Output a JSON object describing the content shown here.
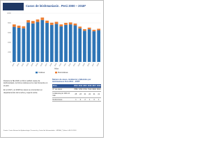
{
  "header": {
    "title": "Casos de leishmaniasis . Perú 2000 – 2018*"
  },
  "chart_data": {
    "type": "bar",
    "stacked": true,
    "categories": [
      "2000",
      "2001",
      "2002",
      "2003",
      "2004",
      "2005",
      "2006",
      "2007",
      "2008",
      "2009",
      "2010",
      "2011",
      "2012",
      "2013",
      "2014",
      "2015",
      "2016",
      "2017",
      "2018"
    ],
    "series": [
      {
        "name": "Cutánea",
        "color": "#2e75b6",
        "values": [
          7200,
          7000,
          6900,
          8100,
          7900,
          8200,
          8600,
          8000,
          7600,
          7800,
          7300,
          7600,
          7700,
          7500,
          6900,
          6400,
          6700,
          6300,
          6500
        ]
      },
      {
        "name": "Mucocutánea",
        "color": "#ed7d31",
        "values": [
          500,
          450,
          420,
          480,
          500,
          520,
          510,
          480,
          450,
          430,
          400,
          420,
          410,
          380,
          350,
          330,
          340,
          300,
          310
        ]
      }
    ],
    "ylim": [
      0,
      10000
    ],
    "yticks": [
      0,
      2000,
      4000,
      6000,
      8000,
      10000
    ],
    "xlabel": "Años",
    "grid": true
  },
  "text": {
    "paragraphs": [
      "Durante la SE 2018, el Perú notificó casos de leishmaniasis, la forma cutánea es la más frecuente en el país.",
      "En el 2017 y el 2018 los casos se concentran en departamentos de la selva y ceja de selva."
    ]
  },
  "table": {
    "title": "Número de casos, incidencia y fallecidos por leishmaniasis Perú 2013 – 2018*",
    "header": [
      "Años",
      "2013",
      "2014",
      "2015",
      "2016",
      "2017",
      "2018"
    ],
    "rows": [
      [
        "N° de casos",
        "7880",
        "7250",
        "6730",
        "7040",
        "6600",
        "6810"
      ],
      [
        "Incidencia por 100 mil hab.",
        "25",
        "23",
        "21",
        "22",
        "21",
        "21"
      ],
      [
        "Defunciones",
        "1",
        "0",
        "2",
        "1",
        "0",
        "1"
      ]
    ]
  },
  "footer": {
    "text": "Fuente: Centro Nacional de Epidemiología, Prevención y Control de Enfermedades – MINSA. (*) Hasta la SE 52-2018"
  }
}
